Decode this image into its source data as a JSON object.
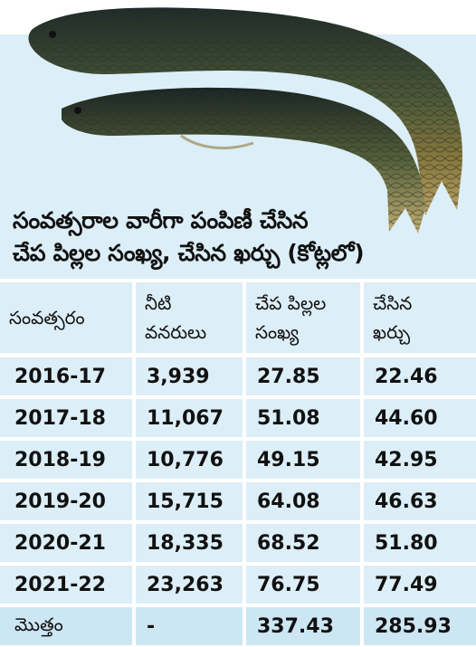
{
  "title_lines": [
    "సంవత్సరాల వారీగా పంపిణీ చేసిన",
    "చేప పిల్లల సంఖ్య, చేసిన ఖర్చు (కోట్లలో)"
  ],
  "table": {
    "headers": [
      [
        "సంవత్సరం"
      ],
      [
        "నీటి",
        "వనరులు"
      ],
      [
        "చేప పిల్లల",
        "సంఖ్య"
      ],
      [
        "చేసిన",
        "ఖర్చు"
      ]
    ],
    "rows": [
      [
        "2016-17",
        "3,939",
        "27.85",
        "22.46"
      ],
      [
        "2017-18",
        "11,067",
        "51.08",
        "44.60"
      ],
      [
        "2018-19",
        "10,776",
        "49.15",
        "42.95"
      ],
      [
        "2019-20",
        "15,715",
        "64.08",
        "46.63"
      ],
      [
        "2020-21",
        "18,335",
        "68.52",
        "51.80"
      ],
      [
        "2021-22",
        "23,263",
        "76.75",
        "77.49"
      ]
    ],
    "total": [
      "మొత్తం",
      "-",
      "337.43",
      "285.93"
    ]
  }
}
